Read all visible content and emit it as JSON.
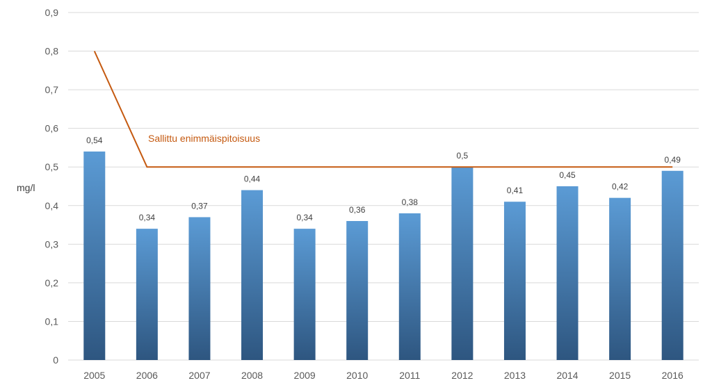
{
  "chart_data": {
    "type": "bar",
    "categories": [
      "2005",
      "2006",
      "2007",
      "2008",
      "2009",
      "2010",
      "2011",
      "2012",
      "2013",
      "2014",
      "2015",
      "2016"
    ],
    "series": [
      {
        "type": "bar",
        "values": [
          0.54,
          0.34,
          0.37,
          0.44,
          0.34,
          0.36,
          0.38,
          0.5,
          0.41,
          0.45,
          0.42,
          0.49
        ],
        "data_labels": [
          "0,54",
          "0,34",
          "0,37",
          "0,44",
          "0,34",
          "0,36",
          "0,38",
          "0,5",
          "0,41",
          "0,45",
          "0,42",
          "0,49"
        ]
      },
      {
        "type": "line",
        "name": "Sallittu enimmäispitoisuus",
        "values": [
          0.8,
          0.5,
          0.5,
          0.5,
          0.5,
          0.5,
          0.5,
          0.5,
          0.5,
          0.5,
          0.5,
          0.5
        ]
      }
    ],
    "ylabel": "mg/l",
    "ylim": [
      0,
      0.9
    ],
    "yticks": [
      "0",
      "0,1",
      "0,2",
      "0,3",
      "0,4",
      "0,5",
      "0,6",
      "0,7",
      "0,8",
      "0,9"
    ],
    "grid": true,
    "legend": "none",
    "colors": {
      "bar_top": "#5b9bd5",
      "bar_bottom": "#2e5680",
      "line": "#c55a11",
      "grid": "#d9d9d9"
    }
  }
}
